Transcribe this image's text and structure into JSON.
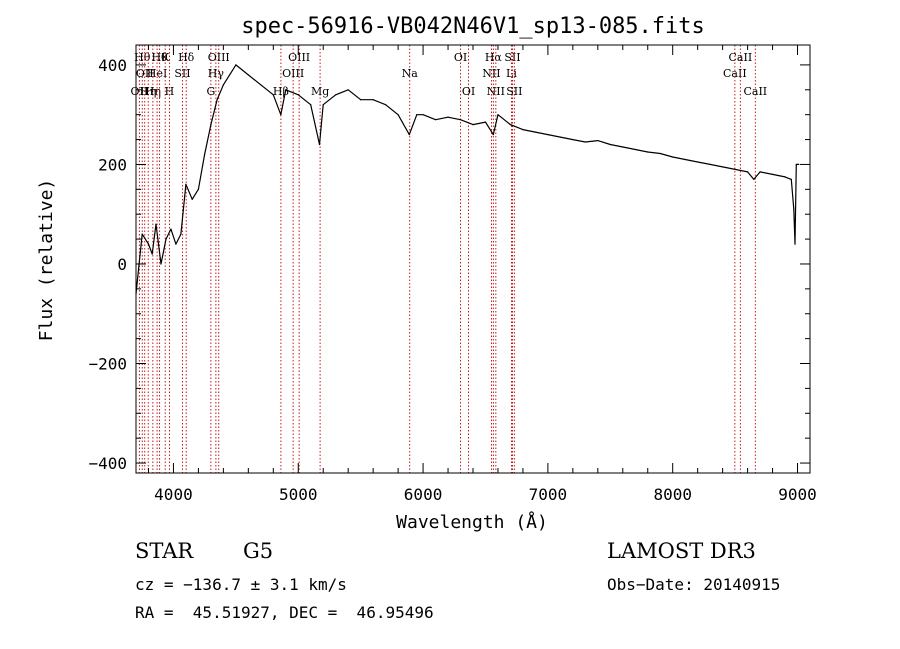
{
  "chart_data": {
    "type": "line",
    "title": "spec-56916-VB042N46V1_sp13-085.fits",
    "xlabel": "Wavelength (Å)",
    "ylabel": "Flux (relative)",
    "xlim": [
      3700,
      9100
    ],
    "ylim": [
      -420,
      440
    ],
    "x_ticks": [
      4000,
      5000,
      6000,
      7000,
      8000,
      9000
    ],
    "y_ticks": [
      -400,
      -200,
      0,
      200,
      400
    ],
    "series": [
      {
        "name": "flux",
        "x": [
          3700,
          3750,
          3800,
          3830,
          3860,
          3900,
          3940,
          3980,
          4020,
          4060,
          4100,
          4150,
          4200,
          4250,
          4300,
          4350,
          4400,
          4450,
          4500,
          4600,
          4700,
          4800,
          4860,
          4900,
          5000,
          5100,
          5170,
          5200,
          5300,
          5400,
          5500,
          5600,
          5700,
          5800,
          5890,
          5950,
          6000,
          6100,
          6200,
          6300,
          6400,
          6500,
          6563,
          6600,
          6700,
          6800,
          6900,
          7000,
          7100,
          7200,
          7300,
          7400,
          7500,
          7600,
          7700,
          7800,
          7900,
          8000,
          8100,
          8200,
          8300,
          8400,
          8500,
          8600,
          8650,
          8700,
          8800,
          8900,
          8950,
          8970,
          8980,
          8990,
          9000,
          9010
        ],
        "y": [
          -60,
          60,
          40,
          20,
          80,
          0,
          50,
          70,
          40,
          60,
          160,
          130,
          150,
          220,
          280,
          330,
          360,
          380,
          400,
          380,
          360,
          340,
          300,
          350,
          340,
          320,
          240,
          320,
          340,
          350,
          330,
          330,
          320,
          300,
          260,
          300,
          300,
          290,
          295,
          290,
          280,
          285,
          260,
          300,
          280,
          270,
          265,
          260,
          255,
          250,
          245,
          248,
          240,
          235,
          230,
          225,
          222,
          215,
          210,
          205,
          200,
          195,
          190,
          185,
          170,
          185,
          180,
          175,
          170,
          110,
          40,
          200,
          200,
          200
        ]
      }
    ],
    "line_markers": [
      {
        "wavelength": 3727,
        "label": "OII",
        "row": 3
      },
      {
        "wavelength": 3750,
        "label": "Hθ",
        "row": 1
      },
      {
        "wavelength": 3770,
        "label": "OII",
        "row": 2
      },
      {
        "wavelength": 3798,
        "label": "Hη",
        "row": 3
      },
      {
        "wavelength": 3835,
        "label": "Hη",
        "row": 3
      },
      {
        "wavelength": 3869,
        "label": "HeI",
        "row": 2
      },
      {
        "wavelength": 3889,
        "label": "Hθ",
        "row": 1
      },
      {
        "wavelength": 3934,
        "label": "K",
        "row": 1
      },
      {
        "wavelength": 3968,
        "label": "H",
        "row": 3
      },
      {
        "wavelength": 4072,
        "label": "SII",
        "row": 2
      },
      {
        "wavelength": 4102,
        "label": "Hδ",
        "row": 1
      },
      {
        "wavelength": 4300,
        "label": "G",
        "row": 3
      },
      {
        "wavelength": 4340,
        "label": "Hγ",
        "row": 2
      },
      {
        "wavelength": 4363,
        "label": "OIII",
        "row": 1
      },
      {
        "wavelength": 4861,
        "label": "Hβ",
        "row": 3
      },
      {
        "wavelength": 4959,
        "label": "OIII",
        "row": 2
      },
      {
        "wavelength": 5007,
        "label": "OIII",
        "row": 1
      },
      {
        "wavelength": 5175,
        "label": "Mg",
        "row": 3
      },
      {
        "wavelength": 5893,
        "label": "Na",
        "row": 2
      },
      {
        "wavelength": 6300,
        "label": "OI",
        "row": 1
      },
      {
        "wavelength": 6364,
        "label": "OI",
        "row": 3
      },
      {
        "wavelength": 6548,
        "label": "NII",
        "row": 2
      },
      {
        "wavelength": 6563,
        "label": "Hα",
        "row": 1
      },
      {
        "wavelength": 6583,
        "label": "NII",
        "row": 3
      },
      {
        "wavelength": 6708,
        "label": "Li",
        "row": 2
      },
      {
        "wavelength": 6716,
        "label": "SII",
        "row": 1
      },
      {
        "wavelength": 6731,
        "label": "SII",
        "row": 3
      },
      {
        "wavelength": 8498,
        "label": "CaII",
        "row": 2
      },
      {
        "wavelength": 8542,
        "label": "CaII",
        "row": 1
      },
      {
        "wavelength": 8662,
        "label": "CaII",
        "row": 3
      }
    ]
  },
  "info": {
    "class": "STAR",
    "subclass": "G5",
    "survey": "LAMOST DR3",
    "cz": "cz = −136.7 ± 3.1 km/s",
    "obs_date": "Obs−Date: 20140915",
    "coords": "RA =  45.51927, DEC =  46.95496"
  },
  "colors": {
    "axis": "#000000",
    "spectrum": "#000000",
    "line_marker": "#c00000"
  }
}
